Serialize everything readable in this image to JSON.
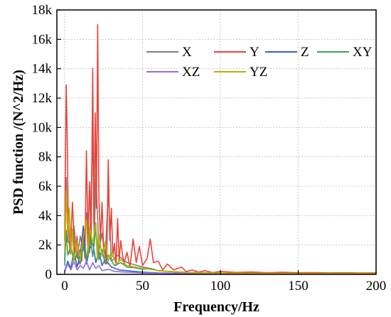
{
  "chart_data": {
    "type": "line",
    "title": "",
    "xlabel": "Frequency/Hz",
    "ylabel": "PSD function /(N^2/Hz)",
    "xlim": [
      -5,
      200
    ],
    "ylim": [
      0,
      18000
    ],
    "x_ticks": [
      0,
      50,
      100,
      150,
      200
    ],
    "y_ticks": [
      0,
      2000,
      4000,
      6000,
      8000,
      10000,
      12000,
      14000,
      16000,
      18000
    ],
    "x_tick_labels": [
      "0",
      "50",
      "100",
      "150",
      "200"
    ],
    "y_tick_labels": [
      "0",
      "2k",
      "4k",
      "6k",
      "8k",
      "10k",
      "12k",
      "14k",
      "16k",
      "18k"
    ],
    "grid": true,
    "legend_position": "top-right",
    "legend_rows": [
      [
        "X",
        "Y",
        "Z",
        "XY"
      ],
      [
        "XZ",
        "YZ"
      ]
    ],
    "series": [
      {
        "name": "X",
        "color": "#7f7f7f",
        "points": [
          [
            0,
            900
          ],
          [
            1,
            6600
          ],
          [
            2,
            2300
          ],
          [
            4,
            1900
          ],
          [
            6,
            3300
          ],
          [
            8,
            1100
          ],
          [
            10,
            2600
          ],
          [
            12,
            1600
          ],
          [
            14,
            4200
          ],
          [
            16,
            1500
          ],
          [
            18,
            9600
          ],
          [
            19,
            2200
          ],
          [
            20,
            6900
          ],
          [
            22,
            1600
          ],
          [
            24,
            2800
          ],
          [
            26,
            1100
          ],
          [
            28,
            5600
          ],
          [
            30,
            900
          ],
          [
            34,
            1300
          ],
          [
            40,
            800
          ],
          [
            50,
            500
          ],
          [
            55,
            400
          ],
          [
            60,
            250
          ],
          [
            70,
            180
          ],
          [
            80,
            130
          ],
          [
            100,
            90
          ],
          [
            150,
            60
          ],
          [
            200,
            50
          ]
        ]
      },
      {
        "name": "Y",
        "color": "#e8433a",
        "points": [
          [
            0,
            2300
          ],
          [
            1,
            12900
          ],
          [
            1.6,
            9500
          ],
          [
            2.3,
            3600
          ],
          [
            3.5,
            1400
          ],
          [
            5,
            4900
          ],
          [
            6.5,
            1300
          ],
          [
            8,
            2600
          ],
          [
            9,
            700
          ],
          [
            10,
            1700
          ],
          [
            11,
            900
          ],
          [
            12,
            2900
          ],
          [
            13,
            1100
          ],
          [
            14,
            8400
          ],
          [
            15,
            2300
          ],
          [
            16,
            6300
          ],
          [
            17,
            1900
          ],
          [
            18,
            14000
          ],
          [
            18.8,
            3400
          ],
          [
            19.6,
            11000
          ],
          [
            20.4,
            4500
          ],
          [
            21.2,
            17000
          ],
          [
            22,
            5200
          ],
          [
            23,
            2400
          ],
          [
            24,
            4900
          ],
          [
            25,
            1700
          ],
          [
            26,
            2200
          ],
          [
            27,
            700
          ],
          [
            28,
            7800
          ],
          [
            29,
            2300
          ],
          [
            30,
            4500
          ],
          [
            31,
            1200
          ],
          [
            32,
            2100
          ],
          [
            33,
            600
          ],
          [
            34,
            3800
          ],
          [
            35,
            900
          ],
          [
            36,
            2300
          ],
          [
            38,
            700
          ],
          [
            40,
            1500
          ],
          [
            42,
            500
          ],
          [
            44,
            2400
          ],
          [
            46,
            800
          ],
          [
            48,
            1900
          ],
          [
            50,
            600
          ],
          [
            53,
            1100
          ],
          [
            55,
            2400
          ],
          [
            57,
            800
          ],
          [
            60,
            900
          ],
          [
            63,
            300
          ],
          [
            66,
            700
          ],
          [
            70,
            300
          ],
          [
            75,
            500
          ],
          [
            78,
            200
          ],
          [
            82,
            300
          ],
          [
            86,
            150
          ],
          [
            90,
            250
          ],
          [
            95,
            120
          ],
          [
            100,
            200
          ],
          [
            110,
            130
          ],
          [
            120,
            160
          ],
          [
            130,
            110
          ],
          [
            140,
            140
          ],
          [
            150,
            110
          ],
          [
            160,
            120
          ],
          [
            170,
            100
          ],
          [
            180,
            110
          ],
          [
            190,
            90
          ],
          [
            200,
            100
          ]
        ]
      },
      {
        "name": "Z",
        "color": "#3a5fcd",
        "points": [
          [
            0,
            200
          ],
          [
            2,
            900
          ],
          [
            4,
            400
          ],
          [
            6,
            1600
          ],
          [
            8,
            500
          ],
          [
            10,
            1300
          ],
          [
            12,
            3300
          ],
          [
            14,
            700
          ],
          [
            16,
            1700
          ],
          [
            18,
            2200
          ],
          [
            20,
            800
          ],
          [
            22,
            1600
          ],
          [
            24,
            600
          ],
          [
            26,
            1000
          ],
          [
            30,
            500
          ],
          [
            35,
            300
          ],
          [
            40,
            250
          ],
          [
            50,
            150
          ],
          [
            60,
            100
          ],
          [
            80,
            70
          ],
          [
            100,
            50
          ],
          [
            150,
            40
          ],
          [
            200,
            30
          ]
        ]
      },
      {
        "name": "XY",
        "color": "#3aa05a",
        "points": [
          [
            0,
            600
          ],
          [
            1,
            3000
          ],
          [
            2,
            1300
          ],
          [
            4,
            1900
          ],
          [
            6,
            900
          ],
          [
            8,
            1400
          ],
          [
            10,
            700
          ],
          [
            12,
            2000
          ],
          [
            14,
            1000
          ],
          [
            16,
            2900
          ],
          [
            18,
            1200
          ],
          [
            20,
            3100
          ],
          [
            22,
            1000
          ],
          [
            24,
            1700
          ],
          [
            26,
            700
          ],
          [
            28,
            1300
          ],
          [
            32,
            600
          ],
          [
            36,
            800
          ],
          [
            40,
            500
          ],
          [
            45,
            450
          ],
          [
            50,
            350
          ],
          [
            55,
            400
          ],
          [
            60,
            250
          ],
          [
            70,
            180
          ],
          [
            80,
            120
          ],
          [
            100,
            80
          ],
          [
            150,
            60
          ],
          [
            200,
            50
          ]
        ]
      },
      {
        "name": "XZ",
        "color": "#9370db",
        "points": [
          [
            0,
            200
          ],
          [
            2,
            700
          ],
          [
            4,
            300
          ],
          [
            6,
            900
          ],
          [
            8,
            300
          ],
          [
            10,
            600
          ],
          [
            12,
            400
          ],
          [
            14,
            900
          ],
          [
            16,
            300
          ],
          [
            18,
            800
          ],
          [
            20,
            400
          ],
          [
            22,
            600
          ],
          [
            24,
            250
          ],
          [
            28,
            350
          ],
          [
            32,
            200
          ],
          [
            40,
            150
          ],
          [
            50,
            100
          ],
          [
            60,
            80
          ],
          [
            80,
            50
          ],
          [
            100,
            40
          ],
          [
            150,
            30
          ],
          [
            200,
            20
          ]
        ]
      },
      {
        "name": "YZ",
        "color": "#b8b000",
        "points": [
          [
            0,
            1500
          ],
          [
            1,
            5700
          ],
          [
            2,
            2600
          ],
          [
            3,
            4500
          ],
          [
            4,
            1400
          ],
          [
            5,
            3100
          ],
          [
            6,
            900
          ],
          [
            8,
            2300
          ],
          [
            10,
            1100
          ],
          [
            12,
            2600
          ],
          [
            14,
            3700
          ],
          [
            15,
            1300
          ],
          [
            16,
            3200
          ],
          [
            18,
            2100
          ],
          [
            20,
            3500
          ],
          [
            21,
            1000
          ],
          [
            22,
            2700
          ],
          [
            24,
            1200
          ],
          [
            26,
            2200
          ],
          [
            28,
            900
          ],
          [
            30,
            1600
          ],
          [
            33,
            700
          ],
          [
            36,
            1000
          ],
          [
            40,
            600
          ],
          [
            45,
            500
          ],
          [
            50,
            400
          ],
          [
            55,
            350
          ],
          [
            60,
            250
          ],
          [
            70,
            180
          ],
          [
            80,
            120
          ],
          [
            100,
            80
          ],
          [
            150,
            60
          ],
          [
            200,
            50
          ]
        ]
      }
    ]
  }
}
